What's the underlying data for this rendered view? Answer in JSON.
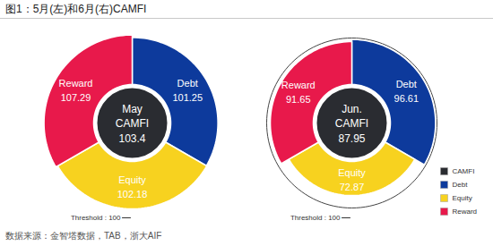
{
  "title": "图1：5月(左)和6月(右)CAMFI",
  "source": "数据来源：金智塔数据，TAB，浙大AIF",
  "chart_data": [
    {
      "type": "polar_area",
      "title": "May",
      "categories": [
        "Debt",
        "Equity",
        "Reward"
      ],
      "values": [
        101.25,
        102.18,
        107.29
      ],
      "colors": [
        "#0d3a9c",
        "#f7d21f",
        "#e8194b"
      ],
      "total": {
        "name": "CAMFI",
        "value": 103.4,
        "color": "#2a2c31"
      },
      "threshold": {
        "value": 100,
        "label": "Threshold : 100"
      },
      "data_labels": true
    },
    {
      "type": "polar_area",
      "title": "Jun.",
      "categories": [
        "Debt",
        "Equity",
        "Reward"
      ],
      "values": [
        96.61,
        72.87,
        91.65
      ],
      "colors": [
        "#0d3a9c",
        "#f7d21f",
        "#e8194b"
      ],
      "total": {
        "name": "CAMFI",
        "value": 87.95,
        "color": "#2a2c31"
      },
      "threshold": {
        "value": 100,
        "label": "Threshold : 100"
      },
      "data_labels": true,
      "legend": "bottom-right"
    }
  ]
}
